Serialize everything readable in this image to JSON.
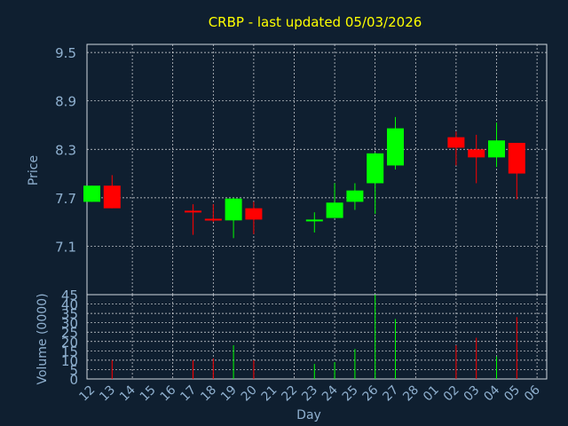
{
  "chart_data": {
    "type": "candlestick",
    "title": "CRBP - last updated 05/03/2026",
    "xlabel": "Day",
    "ylabel": "Price",
    "volume_label": "Volume (0000)",
    "x_tick_labels": [
      "12",
      "13",
      "14",
      "15",
      "16",
      "17",
      "18",
      "19",
      "20",
      "21",
      "22",
      "23",
      "24",
      "25",
      "26",
      "27",
      "28",
      "01",
      "02",
      "03",
      "04",
      "05",
      "06"
    ],
    "price_ticks": [
      "7.1",
      "7.7",
      "8.3",
      "8.9",
      "9.5"
    ],
    "volume_ticks": [
      "0",
      "5",
      "10",
      "15",
      "20",
      "25",
      "30",
      "35",
      "40",
      "45"
    ],
    "ylim": [
      6.5,
      9.6
    ],
    "volume_ylim": [
      0,
      45
    ],
    "grid": true,
    "colors": {
      "up": "#00ff00",
      "down": "#ff0000",
      "background": "#0f1f30",
      "title": "#ffff00",
      "axis_text": "#8fb0cf",
      "grid": "#ffffff"
    },
    "candles": [
      {
        "x": "12",
        "open": 7.65,
        "high": 7.85,
        "low": 7.65,
        "close": 7.85,
        "volume": 0
      },
      {
        "x": "13",
        "open": 7.85,
        "high": 7.98,
        "low": 7.57,
        "close": 7.57,
        "volume": 10
      },
      {
        "x": "17",
        "open": 7.54,
        "high": 7.62,
        "low": 7.24,
        "close": 7.52,
        "volume": 10
      },
      {
        "x": "18",
        "open": 7.44,
        "high": 7.62,
        "low": 7.4,
        "close": 7.42,
        "volume": 11
      },
      {
        "x": "19",
        "open": 7.42,
        "high": 7.7,
        "low": 7.2,
        "close": 7.69,
        "volume": 18
      },
      {
        "x": "20",
        "open": 7.57,
        "high": 7.65,
        "low": 7.25,
        "close": 7.43,
        "volume": 10
      },
      {
        "x": "23",
        "open": 7.42,
        "high": 7.52,
        "low": 7.27,
        "close": 7.43,
        "volume": 8
      },
      {
        "x": "24",
        "open": 7.45,
        "high": 7.88,
        "low": 7.45,
        "close": 7.64,
        "volume": 9
      },
      {
        "x": "25",
        "open": 7.65,
        "high": 7.88,
        "low": 7.55,
        "close": 7.79,
        "volume": 16
      },
      {
        "x": "26",
        "open": 7.88,
        "high": 8.26,
        "low": 7.5,
        "close": 8.25,
        "volume": 45
      },
      {
        "x": "27",
        "open": 8.1,
        "high": 8.7,
        "low": 8.05,
        "close": 8.56,
        "volume": 32
      },
      {
        "x": "02",
        "open": 8.45,
        "high": 8.52,
        "low": 8.1,
        "close": 8.32,
        "volume": 18
      },
      {
        "x": "03",
        "open": 8.3,
        "high": 8.48,
        "low": 7.88,
        "close": 8.2,
        "volume": 22
      },
      {
        "x": "04",
        "open": 8.2,
        "high": 8.63,
        "low": 8.08,
        "close": 8.41,
        "volume": 12
      },
      {
        "x": "05",
        "open": 8.38,
        "high": 8.38,
        "low": 7.68,
        "close": 8.0,
        "volume": 33
      }
    ]
  }
}
